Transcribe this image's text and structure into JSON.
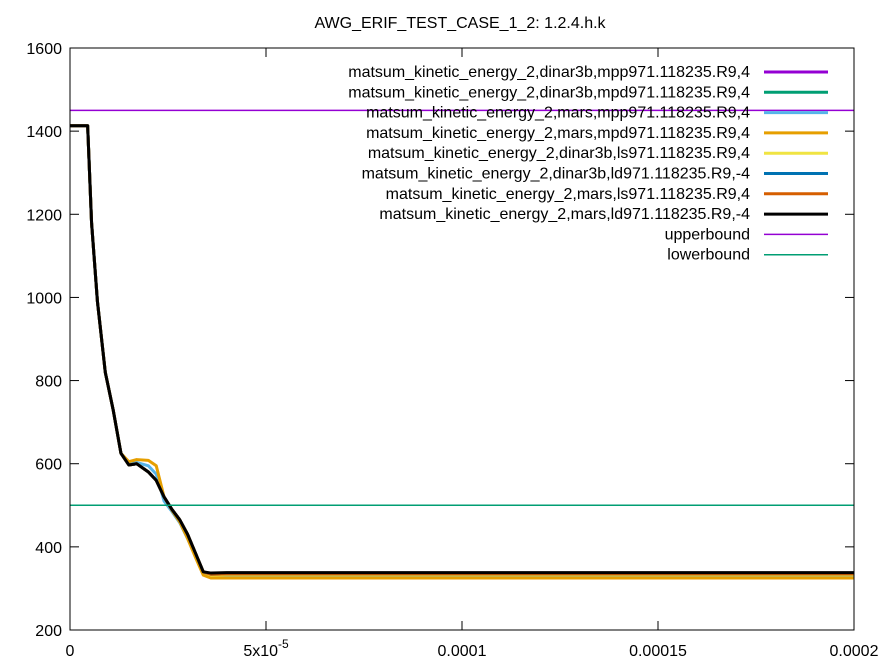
{
  "chart_data": {
    "type": "line",
    "title": "AWG_ERIF_TEST_CASE_1_2: 1.2.4.h.k",
    "xlabel": "",
    "ylabel": "",
    "xlim": [
      0,
      0.0002
    ],
    "ylim": [
      200,
      1600
    ],
    "x_ticks": [
      {
        "value": 0,
        "label": "0"
      },
      {
        "value": 5e-05,
        "label": "5x10",
        "sup": "-5"
      },
      {
        "value": 0.0001,
        "label": "0.0001"
      },
      {
        "value": 0.00015,
        "label": "0.00015"
      },
      {
        "value": 0.0002,
        "label": "0.0002"
      }
    ],
    "y_ticks": [
      {
        "value": 200,
        "label": "200"
      },
      {
        "value": 400,
        "label": "400"
      },
      {
        "value": 600,
        "label": "600"
      },
      {
        "value": 800,
        "label": "800"
      },
      {
        "value": 1000,
        "label": "1000"
      },
      {
        "value": 1200,
        "label": "1200"
      },
      {
        "value": 1400,
        "label": "1400"
      },
      {
        "value": 1600,
        "label": "1600"
      }
    ],
    "grid": false,
    "legend_position": "top-right",
    "series": [
      {
        "name": "matsum_kinetic_energy_2,dinar3b,mpp971.118235.R9,4",
        "color": "#9400d3",
        "width": 3,
        "x": [
          0,
          4.5e-06,
          5.5e-06,
          7e-06,
          9e-06,
          1.1e-05,
          1.3e-05,
          1.5e-05,
          1.7e-05,
          2e-05,
          2.2e-05,
          2.4e-05,
          2.6e-05,
          2.8e-05,
          3e-05,
          3.2e-05,
          3.4e-05,
          3.6e-05,
          4e-05,
          6e-05,
          0.0001,
          0.00015,
          0.0002
        ],
        "y": [
          1413,
          1413,
          1180,
          990,
          820,
          730,
          625,
          597,
          600,
          580,
          560,
          520,
          490,
          465,
          430,
          385,
          340,
          332,
          333,
          333,
          333,
          333,
          333
        ]
      },
      {
        "name": "matsum_kinetic_energy_2,dinar3b,mpd971.118235.R9,4",
        "color": "#009e73",
        "width": 3,
        "x": [
          0,
          4.5e-06,
          5.5e-06,
          7e-06,
          9e-06,
          1.1e-05,
          1.3e-05,
          1.5e-05,
          1.7e-05,
          2e-05,
          2.2e-05,
          2.4e-05,
          2.6e-05,
          2.8e-05,
          3e-05,
          3.2e-05,
          3.4e-05,
          3.6e-05,
          4e-05,
          6e-05,
          0.0001,
          0.00015,
          0.0002
        ],
        "y": [
          1413,
          1413,
          1180,
          990,
          820,
          730,
          625,
          597,
          600,
          580,
          560,
          520,
          490,
          465,
          430,
          385,
          340,
          332,
          333,
          333,
          333,
          333,
          333
        ]
      },
      {
        "name": "matsum_kinetic_energy_2,mars,mpp971.118235.R9,4",
        "color": "#56b4e9",
        "width": 3,
        "x": [
          0,
          4.5e-06,
          5.5e-06,
          7e-06,
          9e-06,
          1.1e-05,
          1.3e-05,
          1.5e-05,
          1.7e-05,
          2e-05,
          2.2e-05,
          2.4e-05,
          2.6e-05,
          2.8e-05,
          3e-05,
          3.2e-05,
          3.4e-05,
          3.6e-05,
          4e-05,
          6e-05,
          0.0001,
          0.00015,
          0.0002
        ],
        "y": [
          1413,
          1413,
          1180,
          990,
          820,
          730,
          625,
          600,
          603,
          595,
          575,
          510,
          485,
          458,
          420,
          378,
          335,
          326,
          326,
          326,
          326,
          326,
          326
        ]
      },
      {
        "name": "matsum_kinetic_energy_2,mars,mpd971.118235.R9,4",
        "color": "#e69f00",
        "width": 3,
        "x": [
          0,
          4.5e-06,
          5.5e-06,
          7e-06,
          9e-06,
          1.1e-05,
          1.3e-05,
          1.5e-05,
          1.7e-05,
          2e-05,
          2.2e-05,
          2.4e-05,
          2.6e-05,
          2.8e-05,
          3e-05,
          3.2e-05,
          3.4e-05,
          3.6e-05,
          4e-05,
          6e-05,
          0.0001,
          0.00015,
          0.0002
        ],
        "y": [
          1413,
          1413,
          1180,
          990,
          820,
          730,
          625,
          605,
          610,
          608,
          595,
          520,
          488,
          460,
          420,
          375,
          332,
          325,
          325,
          325,
          325,
          325,
          325
        ]
      },
      {
        "name": "matsum_kinetic_energy_2,dinar3b,ls971.118235.R9,4",
        "color": "#f0e442",
        "width": 3,
        "x": [
          0,
          4.5e-06,
          5.5e-06,
          7e-06,
          9e-06,
          1.1e-05,
          1.3e-05,
          1.5e-05,
          1.7e-05,
          2e-05,
          2.2e-05,
          2.4e-05,
          2.6e-05,
          2.8e-05,
          3e-05,
          3.2e-05,
          3.4e-05,
          3.6e-05,
          4e-05,
          6e-05,
          0.0001,
          0.00015,
          0.0002
        ],
        "y": [
          1413,
          1413,
          1180,
          990,
          820,
          730,
          625,
          597,
          600,
          580,
          560,
          520,
          490,
          465,
          430,
          385,
          340,
          332,
          333,
          333,
          333,
          333,
          333
        ]
      },
      {
        "name": "matsum_kinetic_energy_2,dinar3b,ld971.118235.R9,-4",
        "color": "#0072b2",
        "width": 3,
        "x": [
          0,
          4.5e-06,
          5.5e-06,
          7e-06,
          9e-06,
          1.1e-05,
          1.3e-05,
          1.5e-05,
          1.7e-05,
          2e-05,
          2.2e-05,
          2.4e-05,
          2.6e-05,
          2.8e-05,
          3e-05,
          3.2e-05,
          3.4e-05,
          3.6e-05,
          4e-05,
          6e-05,
          0.0001,
          0.00015,
          0.0002
        ],
        "y": [
          1413,
          1413,
          1180,
          990,
          820,
          730,
          625,
          597,
          600,
          580,
          560,
          520,
          490,
          465,
          430,
          385,
          340,
          334,
          335,
          335,
          335,
          335,
          335
        ]
      },
      {
        "name": "matsum_kinetic_energy_2,mars,ls971.118235.R9,4",
        "color": "#d55e00",
        "width": 3,
        "x": [
          0,
          4.5e-06,
          5.5e-06,
          7e-06,
          9e-06,
          1.1e-05,
          1.3e-05,
          1.5e-05,
          1.7e-05,
          2e-05,
          2.2e-05,
          2.4e-05,
          2.6e-05,
          2.8e-05,
          3e-05,
          3.2e-05,
          3.4e-05,
          3.6e-05,
          4e-05,
          6e-05,
          0.0001,
          0.00015,
          0.0002
        ],
        "y": [
          1413,
          1413,
          1180,
          990,
          820,
          730,
          625,
          597,
          600,
          580,
          560,
          520,
          490,
          465,
          430,
          385,
          340,
          334,
          335,
          335,
          335,
          335,
          335
        ]
      },
      {
        "name": "matsum_kinetic_energy_2,mars,ld971.118235.R9,-4",
        "color": "#000000",
        "width": 3,
        "x": [
          0,
          4.5e-06,
          5.5e-06,
          7e-06,
          9e-06,
          1.1e-05,
          1.3e-05,
          1.5e-05,
          1.7e-05,
          2e-05,
          2.2e-05,
          2.4e-05,
          2.6e-05,
          2.8e-05,
          3e-05,
          3.2e-05,
          3.4e-05,
          3.6e-05,
          4e-05,
          6e-05,
          0.0001,
          0.00015,
          0.0002
        ],
        "y": [
          1413,
          1413,
          1180,
          990,
          820,
          730,
          625,
          597,
          600,
          580,
          560,
          520,
          490,
          465,
          430,
          385,
          340,
          337,
          338,
          338,
          338,
          338,
          338
        ]
      },
      {
        "name": "upperbound",
        "color": "#9400d3",
        "width": 1.5,
        "x": [
          0,
          0.0002
        ],
        "y": [
          1450,
          1450
        ]
      },
      {
        "name": "lowerbound",
        "color": "#009e73",
        "width": 1.5,
        "x": [
          0,
          0.0002
        ],
        "y": [
          500,
          500
        ]
      }
    ]
  }
}
